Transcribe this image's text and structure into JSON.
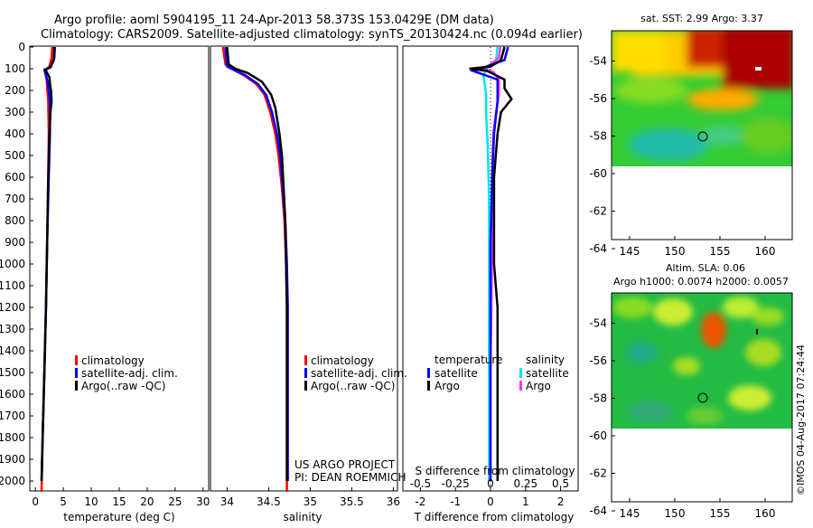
{
  "header": {
    "line1": "Argo profile: aoml 5904195_11 24-Apr-2013 58.373S 153.0429E (DM data)",
    "line2": "Climatology: CARS2009. Satellite-adjusted climatology: synTS_20130424.nc (0.094d earlier)"
  },
  "colors": {
    "climatology": "#ff0000",
    "satellite": "#0000ff",
    "argo": "#000000",
    "satellite_s": "#00e5ee",
    "argo_s": "#ff33ff"
  },
  "depth_axis": {
    "ticks": [
      "0",
      "100",
      "200",
      "300",
      "400",
      "500",
      "600",
      "700",
      "800",
      "900",
      "1000",
      "1100",
      "1200",
      "1300",
      "1400",
      "1500",
      "1600",
      "1700",
      "1800",
      "1900",
      "2000"
    ]
  },
  "temp_panel": {
    "xlabel": "temperature (deg C)",
    "xticks": [
      "0",
      "5",
      "10",
      "15",
      "20",
      "25",
      "30"
    ],
    "legend": [
      "climatology",
      "satellite-adj. clim.",
      "Argo(..raw -QC)"
    ]
  },
  "sal_panel": {
    "xlabel": "salinity",
    "xticks": [
      "34",
      "34.5",
      "35",
      "35.5",
      "36"
    ],
    "legend": [
      "climatology",
      "satellite-adj. clim.",
      "Argo(..raw -QC)"
    ],
    "note1": "US ARGO PROJECT",
    "note2": "PI: DEAN ROEMMICH"
  },
  "diff_panel": {
    "xlabel": "T difference from climatology",
    "xticks": [
      "-2",
      "-1",
      "0",
      "1",
      "2"
    ],
    "top_label": "S difference from climatology",
    "top_ticks": [
      "-0.5",
      "-0.25",
      "0",
      "0.25",
      "0.5"
    ],
    "legend_t_title": "temperature",
    "legend_s_title": "salinity",
    "legend_t": [
      "satellite",
      "Argo"
    ],
    "legend_s": [
      "satellite",
      "Argo"
    ]
  },
  "map1": {
    "title": "sat. SST: 2.99 Argo: 3.37",
    "yticks": [
      "-54",
      "-56",
      "-58",
      "-60",
      "-62",
      "-64"
    ],
    "xticks": [
      "145",
      "150",
      "155",
      "160"
    ]
  },
  "map2": {
    "title1": "Altim. SLA: 0.06",
    "title2": "Argo h1000: 0.0074 h2000: 0.0057",
    "yticks": [
      "-54",
      "-56",
      "-58",
      "-60",
      "-62",
      "-64"
    ],
    "xticks": [
      "145",
      "150",
      "155",
      "160"
    ]
  },
  "footer_stamp": "©IMOS 04-Aug-2017 07:24:44",
  "chart_data": [
    {
      "type": "line",
      "xlabel": "temperature (deg C)",
      "ylabel": "",
      "xlim": [
        -1,
        31
      ],
      "ylim": [
        2050,
        0
      ],
      "series": [
        {
          "name": "climatology",
          "color": "#ff0000",
          "points": [
            [
              3.0,
              0
            ],
            [
              2.9,
              50
            ],
            [
              2.5,
              90
            ],
            [
              1.7,
              110
            ],
            [
              2.0,
              150
            ],
            [
              2.3,
              250
            ],
            [
              2.4,
              400
            ],
            [
              2.3,
              600
            ],
            [
              2.1,
              900
            ],
            [
              1.9,
              1200
            ],
            [
              1.6,
              1500
            ],
            [
              1.3,
              1800
            ],
            [
              1.1,
              2050
            ]
          ]
        },
        {
          "name": "satellite-adj. clim.",
          "color": "#0000ff",
          "points": [
            [
              3.5,
              0
            ],
            [
              3.4,
              50
            ],
            [
              2.8,
              90
            ],
            [
              1.6,
              105
            ],
            [
              2.2,
              160
            ],
            [
              2.6,
              260
            ],
            [
              2.6,
              400
            ],
            [
              2.4,
              600
            ],
            [
              2.1,
              900
            ],
            [
              1.9,
              1200
            ],
            [
              1.6,
              1500
            ],
            [
              1.3,
              1800
            ],
            [
              1.1,
              2000
            ]
          ]
        },
        {
          "name": "Argo(..raw -QC)",
          "color": "#000000",
          "points": [
            [
              3.4,
              0
            ],
            [
              3.3,
              60
            ],
            [
              2.6,
              95
            ],
            [
              1.8,
              105
            ],
            [
              2.5,
              140
            ],
            [
              2.6,
              170
            ],
            [
              2.8,
              200
            ],
            [
              2.9,
              250
            ],
            [
              2.7,
              300
            ],
            [
              2.5,
              400
            ],
            [
              2.3,
              600
            ],
            [
              2.1,
              900
            ],
            [
              1.9,
              1200
            ],
            [
              1.6,
              1500
            ],
            [
              1.3,
              1800
            ],
            [
              1.1,
              2000
            ]
          ]
        }
      ]
    },
    {
      "type": "line",
      "xlabel": "salinity",
      "ylabel": "",
      "xlim": [
        33.8,
        36.05
      ],
      "ylim": [
        2050,
        0
      ],
      "series": [
        {
          "name": "climatology",
          "color": "#ff0000",
          "points": [
            [
              33.95,
              0
            ],
            [
              33.98,
              80
            ],
            [
              34.05,
              100
            ],
            [
              34.2,
              130
            ],
            [
              34.35,
              170
            ],
            [
              34.45,
              220
            ],
            [
              34.52,
              300
            ],
            [
              34.58,
              400
            ],
            [
              34.62,
              500
            ],
            [
              34.66,
              650
            ],
            [
              34.69,
              800
            ],
            [
              34.71,
              1000
            ],
            [
              34.72,
              1200
            ],
            [
              34.72,
              1500
            ],
            [
              34.72,
              2050
            ]
          ]
        },
        {
          "name": "satellite-adj. clim.",
          "color": "#0000ff",
          "points": [
            [
              33.98,
              0
            ],
            [
              34.0,
              90
            ],
            [
              34.08,
              105
            ],
            [
              34.22,
              130
            ],
            [
              34.37,
              170
            ],
            [
              34.47,
              220
            ],
            [
              34.54,
              300
            ],
            [
              34.6,
              400
            ],
            [
              34.64,
              500
            ],
            [
              34.67,
              650
            ],
            [
              34.7,
              800
            ],
            [
              34.72,
              1000
            ],
            [
              34.73,
              1200
            ],
            [
              34.73,
              1500
            ],
            [
              34.73,
              2000
            ]
          ]
        },
        {
          "name": "Argo(..raw -QC)",
          "color": "#000000",
          "points": [
            [
              34.0,
              0
            ],
            [
              34.02,
              80
            ],
            [
              34.1,
              100
            ],
            [
              34.25,
              120
            ],
            [
              34.42,
              160
            ],
            [
              34.53,
              220
            ],
            [
              34.58,
              280
            ],
            [
              34.63,
              400
            ],
            [
              34.66,
              500
            ],
            [
              34.68,
              650
            ],
            [
              34.7,
              800
            ],
            [
              34.71,
              1000
            ],
            [
              34.72,
              1200
            ],
            [
              34.72,
              1500
            ],
            [
              34.72,
              2000
            ]
          ]
        }
      ]
    },
    {
      "type": "line",
      "xlabel": "T difference from climatology",
      "ylabel": "",
      "xlim": [
        -2.5,
        2.5
      ],
      "ylim": [
        2050,
        0
      ],
      "series": [
        {
          "name": "satellite",
          "color": "#0000ff",
          "points": [
            [
              0.5,
              0
            ],
            [
              0.4,
              60
            ],
            [
              -0.2,
              95
            ],
            [
              -0.5,
              110
            ],
            [
              0.2,
              150
            ],
            [
              0.2,
              250
            ],
            [
              0.1,
              400
            ],
            [
              0.05,
              600
            ],
            [
              0.0,
              900
            ],
            [
              0.0,
              1200
            ],
            [
              0.0,
              1500
            ],
            [
              0.0,
              2000
            ]
          ]
        },
        {
          "name": "Argo",
          "color": "#000000",
          "points": [
            [
              0.4,
              0
            ],
            [
              0.3,
              60
            ],
            [
              0.0,
              90
            ],
            [
              -0.6,
              100
            ],
            [
              -0.1,
              110
            ],
            [
              0.4,
              150
            ],
            [
              0.4,
              190
            ],
            [
              0.6,
              240
            ],
            [
              0.3,
              300
            ],
            [
              0.2,
              400
            ],
            [
              0.1,
              600
            ],
            [
              0.1,
              1000
            ],
            [
              0.2,
              1200
            ],
            [
              0.2,
              1500
            ],
            [
              0.2,
              2000
            ]
          ]
        }
      ]
    },
    {
      "type": "line",
      "xlabel": "S difference from climatology",
      "ylabel": "",
      "xlim": [
        -0.625,
        0.625
      ],
      "ylim": [
        2050,
        0
      ],
      "series": [
        {
          "name": "satellite",
          "color": "#00e5ee",
          "points": [
            [
              0.05,
              0
            ],
            [
              0.04,
              60
            ],
            [
              -0.02,
              95
            ],
            [
              -0.05,
              130
            ],
            [
              -0.03,
              220
            ],
            [
              -0.03,
              320
            ],
            [
              -0.02,
              450
            ],
            [
              -0.01,
              700
            ],
            [
              -0.01,
              1000
            ],
            [
              -0.01,
              1500
            ],
            [
              -0.01,
              2000
            ]
          ]
        },
        {
          "name": "Argo",
          "color": "#ff33ff",
          "points": [
            [
              0.07,
              0
            ],
            [
              0.06,
              50
            ],
            [
              0.0,
              80
            ],
            [
              -0.05,
              100
            ],
            [
              0.02,
              115
            ],
            [
              0.06,
              150
            ],
            [
              0.06,
              220
            ],
            [
              0.04,
              300
            ],
            [
              0.02,
              400
            ],
            [
              0.01,
              600
            ],
            [
              0.01,
              1000
            ],
            [
              0.0,
              1500
            ],
            [
              0.0,
              2000
            ]
          ]
        }
      ]
    }
  ]
}
